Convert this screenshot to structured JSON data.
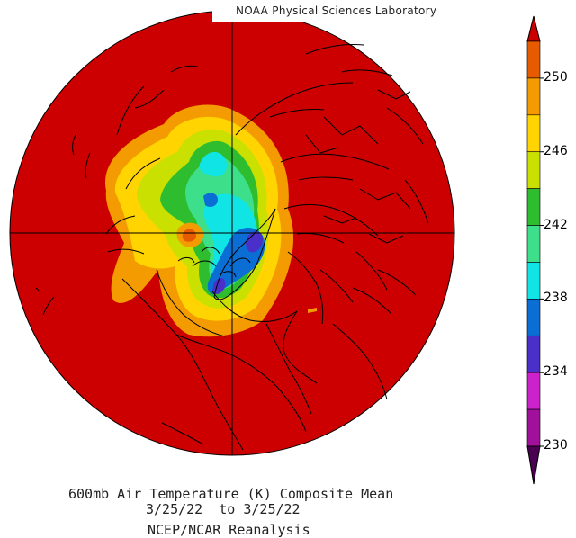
{
  "header": {
    "title": "NOAA Physical Sciences Laboratory"
  },
  "colorbar": {
    "tick_labels": [
      "250",
      "246",
      "242",
      "238",
      "234",
      "230"
    ],
    "colors": [
      "#cc0000",
      "#e65b00",
      "#f39b00",
      "#ffd400",
      "#c9e000",
      "#2ebd2e",
      "#3ddf8a",
      "#10e4e4",
      "#0a6ed4",
      "#4a2fc8",
      "#cc22cc",
      "#a0109a",
      "#4a0050"
    ]
  },
  "caption": {
    "line1": "600mb Air Temperature (K) Composite Mean",
    "line2": "3/25/22  to 3/25/22",
    "line3": "NCEP/NCAR Reanalysis"
  },
  "map": {
    "projection": "north-polar-stereographic",
    "background_color": "#cc0000",
    "coastline_color": "#000000"
  }
}
